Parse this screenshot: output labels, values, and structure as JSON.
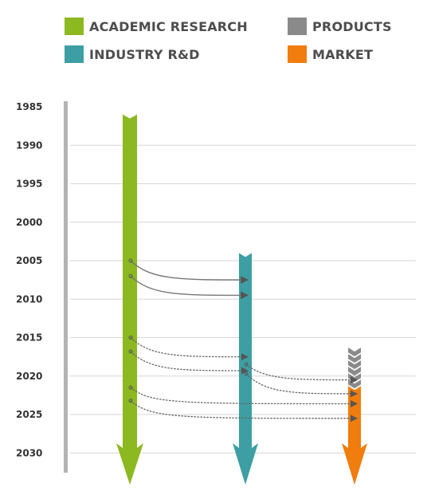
{
  "legend": {
    "academic": {
      "label": "ACADEMIC RESEARCH",
      "color": "#8cb820"
    },
    "products": {
      "label": "PRODUCTS",
      "color": "#8a8a8a"
    },
    "industry": {
      "label": "INDUSTRY R&D",
      "color": "#3d9fa3"
    },
    "market": {
      "label": "MARKET",
      "color": "#f07d0d"
    }
  },
  "years": [
    "1985",
    "1990",
    "1995",
    "2000",
    "2005",
    "2010",
    "2015",
    "2020",
    "2025",
    "2030"
  ],
  "streams": [
    {
      "key": "academic",
      "start": 1986
    },
    {
      "key": "industry",
      "start": 2004
    },
    {
      "key": "products",
      "start": 2016.3,
      "end": 2021.3
    },
    {
      "key": "market",
      "start": 2021.3
    }
  ],
  "transfers": [
    {
      "from": "academic",
      "to": "industry",
      "from_year": 2005,
      "to_year": 2007.5,
      "style": "solid"
    },
    {
      "from": "academic",
      "to": "industry",
      "from_year": 2007,
      "to_year": 2009.5,
      "style": "solid"
    },
    {
      "from": "academic",
      "to": "industry",
      "from_year": 2015,
      "to_year": 2017.5,
      "style": "dotted"
    },
    {
      "from": "academic",
      "to": "industry",
      "from_year": 2016.8,
      "to_year": 2019.3,
      "style": "dotted"
    },
    {
      "from": "industry",
      "to": "products",
      "from_year": 2018.5,
      "to_year": 2020.5,
      "style": "dotted"
    },
    {
      "from": "industry",
      "to": "market",
      "from_year": 2019.7,
      "to_year": 2022.3,
      "style": "dotted"
    },
    {
      "from": "academic",
      "to": "market",
      "from_year": 2021.5,
      "to_year": 2023.6,
      "style": "dotted"
    },
    {
      "from": "academic",
      "to": "market",
      "from_year": 2023.2,
      "to_year": 2025.5,
      "style": "dotted"
    }
  ]
}
